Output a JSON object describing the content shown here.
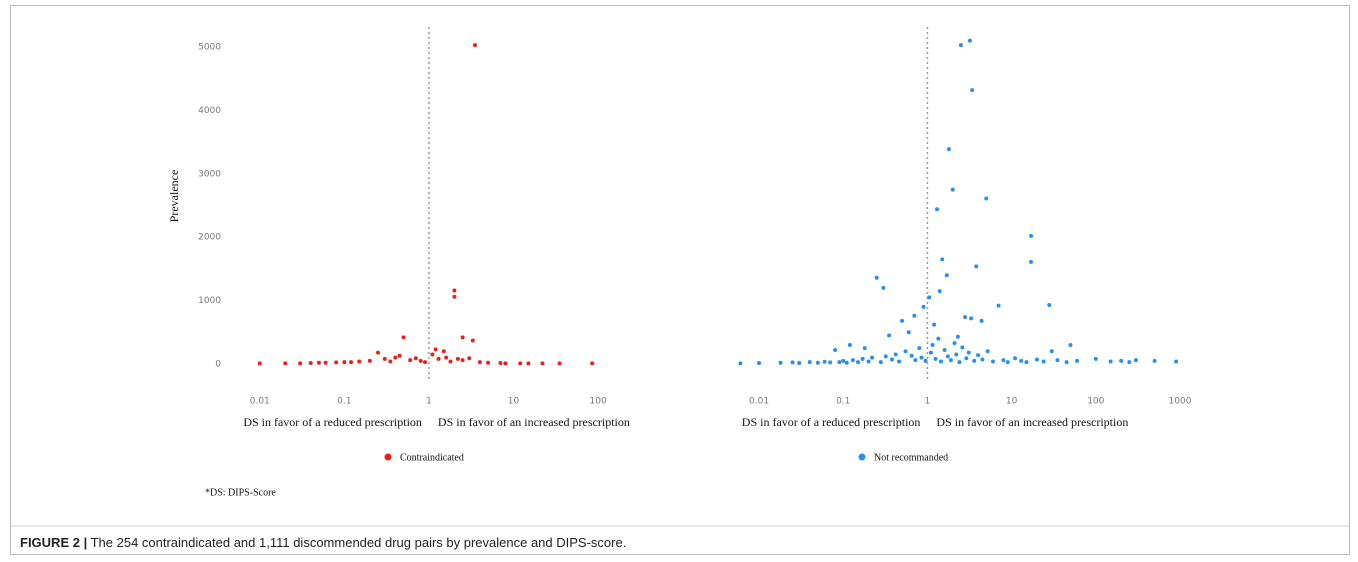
{
  "chart_data": [
    {
      "type": "scatter",
      "y_label": "Prevalence",
      "log_x": true,
      "reference_line_x": 1,
      "x_annotations": [
        "DS in favor of a reduced prescription",
        "DS in favor of an increased prescription"
      ],
      "xlim": [
        0.006,
        150
      ],
      "xticks": [
        0.01,
        0.1,
        1,
        10,
        100
      ],
      "ylim": [
        -300,
        5300
      ],
      "yticks": [
        0,
        1000,
        2000,
        3000,
        4000,
        5000
      ],
      "series": [
        {
          "name": "Contraindicated",
          "color": "#e8221b",
          "x": [
            3.5,
            2,
            2,
            2.5,
            3.3,
            0.5,
            0.25,
            1.2,
            1.5,
            0.01,
            0.02,
            0.03,
            0.04,
            0.05,
            0.06,
            0.08,
            0.1,
            0.12,
            0.15,
            0.2,
            0.3,
            0.4,
            0.6,
            0.7,
            0.8,
            1.1,
            1.3,
            1.8,
            2.5,
            4,
            5,
            7,
            8,
            12,
            15,
            22,
            35,
            85,
            0.35,
            0.45,
            0.9,
            1.6,
            3,
            2.2
          ],
          "values": [
            5030,
            1160,
            1060,
            420,
            370,
            420,
            180,
            230,
            200,
            10,
            10,
            10,
            15,
            20,
            20,
            25,
            30,
            30,
            40,
            50,
            80,
            100,
            60,
            90,
            50,
            150,
            80,
            40,
            60,
            30,
            20,
            15,
            10,
            10,
            10,
            10,
            10,
            10,
            40,
            130,
            30,
            100,
            90,
            80
          ]
        }
      ]
    },
    {
      "type": "scatter",
      "log_x": true,
      "reference_line_x": 1,
      "x_annotations": [
        "DS in favor of a reduced prescription",
        "DS in favor of an increased prescription"
      ],
      "xlim": [
        0.005,
        1500
      ],
      "xticks": [
        0.01,
        0.1,
        1,
        10,
        100,
        1000
      ],
      "ylim": [
        -300,
        5300
      ],
      "series": [
        {
          "name": "Not recommanded",
          "color": "#2b8fe6",
          "x": [
            2.5,
            3.2,
            3.4,
            1.8,
            2,
            5,
            1.3,
            17,
            17,
            1.5,
            28,
            7,
            3.8,
            0.25,
            0.3,
            1.4,
            1.7,
            1.05,
            0.9,
            0.7,
            1.2,
            0.5,
            0.6,
            2.8,
            3.3,
            4.4,
            2.3,
            0.35,
            0.12,
            0.18,
            0.08,
            50,
            30,
            100,
            200,
            300,
            500,
            900,
            0.006,
            0.01,
            0.018,
            0.025,
            0.03,
            0.04,
            0.05,
            0.06,
            0.07,
            0.09,
            0.1,
            0.11,
            0.13,
            0.15,
            0.17,
            0.2,
            0.22,
            0.28,
            0.32,
            0.38,
            0.42,
            0.46,
            0.55,
            0.65,
            0.72,
            0.8,
            0.85,
            0.95,
            1.1,
            1.15,
            1.25,
            1.35,
            1.45,
            1.6,
            1.75,
            1.9,
            2.1,
            2.2,
            2.4,
            2.6,
            2.9,
            3.1,
            3.6,
            4,
            4.5,
            5.2,
            6,
            8,
            9,
            11,
            13,
            15,
            20,
            24,
            35,
            45,
            60,
            150,
            250
          ],
          "values": [
            5030,
            5100,
            4320,
            3390,
            2750,
            2610,
            2440,
            2020,
            1610,
            1650,
            930,
            920,
            1540,
            1360,
            1200,
            1150,
            1400,
            1050,
            900,
            760,
            620,
            680,
            500,
            740,
            720,
            680,
            430,
            450,
            300,
            250,
            220,
            300,
            200,
            80,
            50,
            60,
            50,
            40,
            10,
            15,
            20,
            25,
            15,
            30,
            20,
            35,
            25,
            30,
            50,
            20,
            60,
            30,
            80,
            40,
            100,
            30,
            120,
            70,
            150,
            40,
            200,
            130,
            60,
            250,
            100,
            50,
            180,
            300,
            80,
            400,
            40,
            220,
            120,
            60,
            330,
            150,
            30,
            260,
            90,
            180,
            50,
            140,
            70,
            200,
            40,
            60,
            30,
            90,
            50,
            30,
            70,
            40,
            60,
            30,
            50,
            40,
            30
          ]
        }
      ]
    }
  ],
  "footnote": "*DS: DIPS-Score",
  "caption": {
    "label": "FIGURE 2 |",
    "text": "The 254 contraindicated and 1,111 discommended drug pairs by prevalence and DIPS-score."
  }
}
